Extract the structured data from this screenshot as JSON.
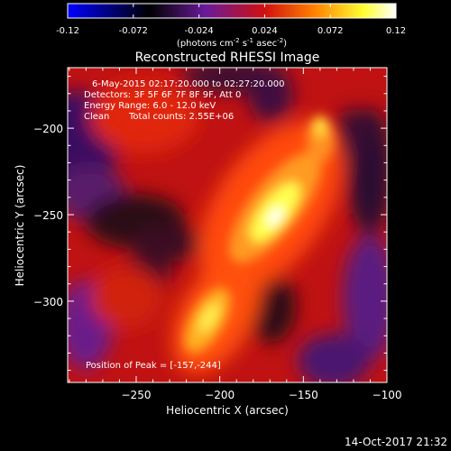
{
  "chart_data": {
    "type": "heatmap",
    "title": "Reconstructed RHESSI Image",
    "xlabel": "Heliocentric X (arcsec)",
    "ylabel": "Heliocentric Y (arcsec)",
    "xlim": [
      -291,
      -100
    ],
    "ylim": [
      -347,
      -165
    ],
    "xticks": [
      -250,
      -200,
      -150,
      -100
    ],
    "yticks": [
      -200,
      -250,
      -300
    ],
    "colorbar": {
      "min": -0.12,
      "max": 0.12,
      "ticks": [
        -0.12,
        -0.072,
        -0.024,
        0.024,
        0.072,
        0.12
      ],
      "tick_labels": [
        "-0.12",
        "-0.072",
        "-0.024",
        "0.024",
        "0.072",
        "0.12"
      ],
      "unit_label_parts": [
        "(photons cm",
        "-2",
        " s",
        "-1",
        " asec",
        "-2",
        ")"
      ],
      "colormap": [
        "#0000ff",
        "#000000",
        "#6a1a9a",
        "#d01010",
        "#ff8000",
        "#ffff30",
        "#ffffff"
      ]
    },
    "annotations": {
      "time_range": "6-May-2015 02:17:20.000 to 02:27:20.000",
      "detectors": "Detectors: 3F 5F 6F 7F 8F 9F, Att 0",
      "energy": "Energy Range: 6.0 - 12.0 keV",
      "method_label": "Clean",
      "total_counts": "Total counts: 2.55E+06",
      "peak_label": "Position of Peak = ",
      "peak_value": "[-157,-244]"
    },
    "peak": {
      "x": -157,
      "y": -244
    }
  },
  "footer": {
    "timestamp": "14-Oct-2017 21:32"
  }
}
